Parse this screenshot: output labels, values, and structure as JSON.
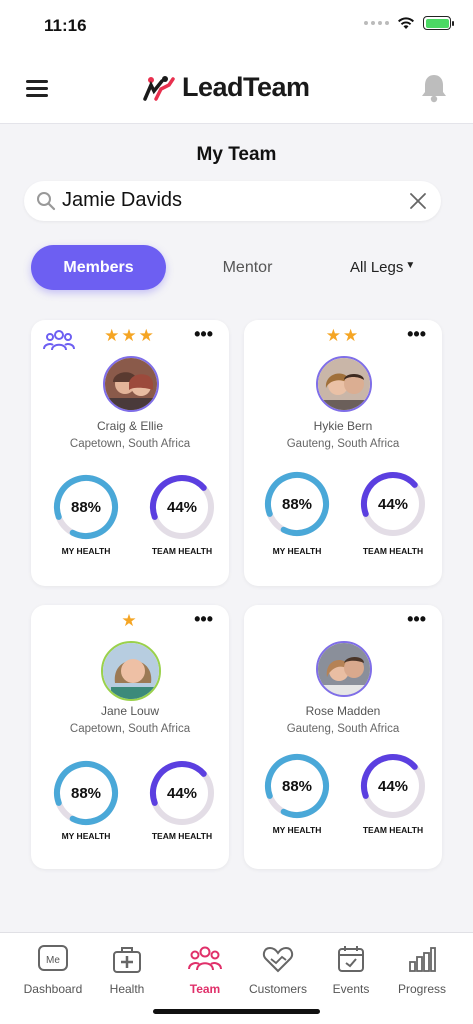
{
  "status_bar": {
    "time": "11:16"
  },
  "header": {
    "app_name": "LeadTeam"
  },
  "page": {
    "title": "My Team"
  },
  "search": {
    "value": "Jamie Davids"
  },
  "filters": {
    "members": "Members",
    "mentor": "Mentor",
    "legs": "All Legs"
  },
  "cards": [
    {
      "name": "Craig & Ellie",
      "location": "Capetown, South Africa",
      "stars": "★★★",
      "my_health": "88%",
      "team_health": "44%",
      "my_health_pct": 88,
      "team_health_pct": 44,
      "my_health_label": "MY HEALTH",
      "team_health_label": "TEAM HEALTH"
    },
    {
      "name": "Hykie Bern",
      "location": "Gauteng, South Africa",
      "stars": "★★",
      "my_health": "88%",
      "team_health": "44%",
      "my_health_pct": 88,
      "team_health_pct": 44,
      "my_health_label": "MY HEALTH",
      "team_health_label": "TEAM HEALTH"
    },
    {
      "name": "Jane Louw",
      "location": "Capetown, South Africa",
      "stars": "★",
      "my_health": "88%",
      "team_health": "44%",
      "my_health_pct": 88,
      "team_health_pct": 44,
      "my_health_label": "MY HEALTH",
      "team_health_label": "TEAM HEALTH"
    },
    {
      "name": "Rose Madden",
      "location": "Gauteng, South Africa",
      "stars": "",
      "my_health": "88%",
      "team_health": "44%",
      "my_health_pct": 88,
      "team_health_pct": 44,
      "my_health_label": "MY HEALTH",
      "team_health_label": "TEAM HEALTH"
    }
  ],
  "colors": {
    "accent": "#6d5ff2",
    "my_health_ring": "#4aa8d8",
    "team_health_ring": "#5b3fe0",
    "ring_track": "#e3dde6",
    "star": "#f5a524",
    "active_nav": "#e0306a"
  },
  "bottom_nav": [
    {
      "label": "Dashboard",
      "icon": "me-icon"
    },
    {
      "label": "Health",
      "icon": "health-kit-icon"
    },
    {
      "label": "Team",
      "icon": "team-icon"
    },
    {
      "label": "Customers",
      "icon": "handshake-heart-icon"
    },
    {
      "label": "Events",
      "icon": "calendar-icon"
    },
    {
      "label": "Progress",
      "icon": "bar-chart-icon"
    }
  ]
}
